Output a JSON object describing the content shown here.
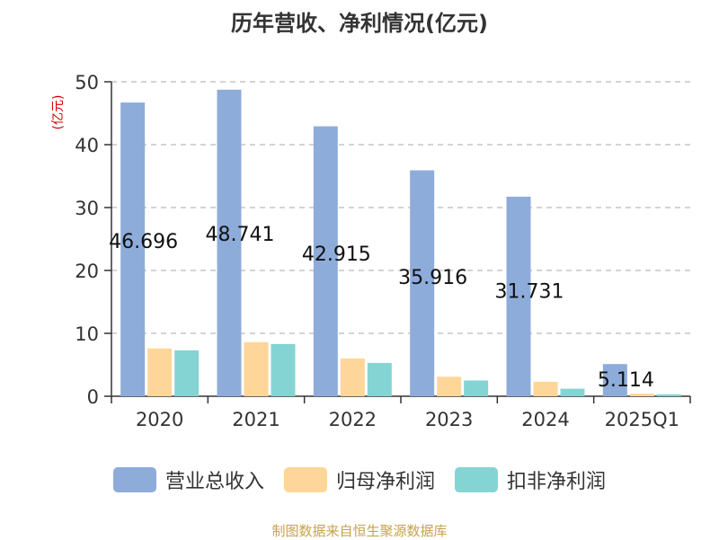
{
  "chart_data": {
    "type": "bar",
    "title": "历年营收、净利情况(亿元)",
    "unit_label": "(亿元)",
    "categories": [
      "2020",
      "2021",
      "2022",
      "2023",
      "2024",
      "2025Q1"
    ],
    "series": [
      {
        "name": "营业总收入",
        "color": "#8eacda",
        "values": [
          46.696,
          48.741,
          42.915,
          35.916,
          31.731,
          5.114
        ],
        "labels": [
          "46.696",
          "48.741",
          "42.915",
          "35.916",
          "31.731",
          "5.114"
        ]
      },
      {
        "name": "归母净利润",
        "color": "#ffd699",
        "values": [
          7.6,
          8.6,
          6.0,
          3.1,
          2.3,
          0.4
        ]
      },
      {
        "name": "扣非净利润",
        "color": "#85d4d4",
        "values": [
          7.3,
          8.3,
          5.3,
          2.5,
          1.2,
          0.3
        ]
      }
    ],
    "ylim": [
      0,
      50
    ],
    "yticks": [
      0,
      10,
      20,
      30,
      40,
      50
    ],
    "grid": true,
    "legend_position": "bottom"
  },
  "source_text": "制图数据来自恒生聚源数据库"
}
